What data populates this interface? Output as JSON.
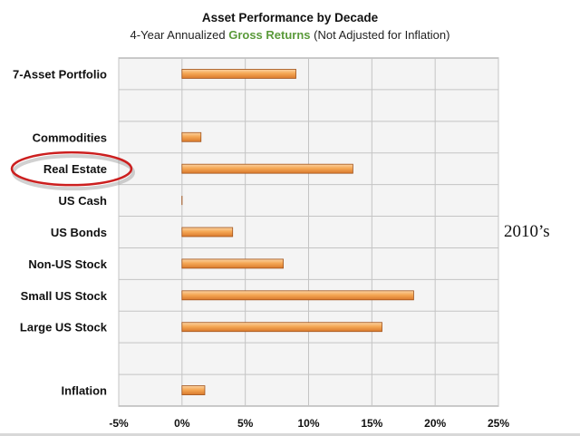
{
  "chart_data": {
    "type": "bar",
    "orientation": "horizontal",
    "title": "Asset Performance by Decade",
    "subtitle": {
      "prefix": "4-Year Annualized ",
      "highlight": "Gross Returns",
      "suffix": " (Not Adjusted for Inflation)"
    },
    "categories": [
      "7-Asset Portfolio",
      "",
      "Commodities",
      "Real Estate",
      "US Cash",
      "US Bonds",
      "Non-US Stock",
      "Small US Stock",
      "Large US Stock",
      "",
      "Inflation"
    ],
    "values": [
      9.0,
      null,
      1.5,
      13.5,
      0.0,
      4.0,
      8.0,
      18.3,
      15.8,
      null,
      1.8
    ],
    "xlim": [
      -5,
      25
    ],
    "x_ticks": [
      "-5%",
      "0%",
      "5%",
      "10%",
      "15%",
      "20%",
      "25%"
    ],
    "x_tick_values": [
      -5,
      0,
      5,
      10,
      15,
      20,
      25
    ],
    "highlighted_category": "Real Estate",
    "annotation": "2010’s",
    "grid": true,
    "colors": {
      "bar_fill": "#f5a855",
      "bar_stroke": "#a0521a",
      "plot_background": "#f4f4f4",
      "grid": "#c4c4c4",
      "highlight_ellipse": "#cc1f1f"
    }
  }
}
